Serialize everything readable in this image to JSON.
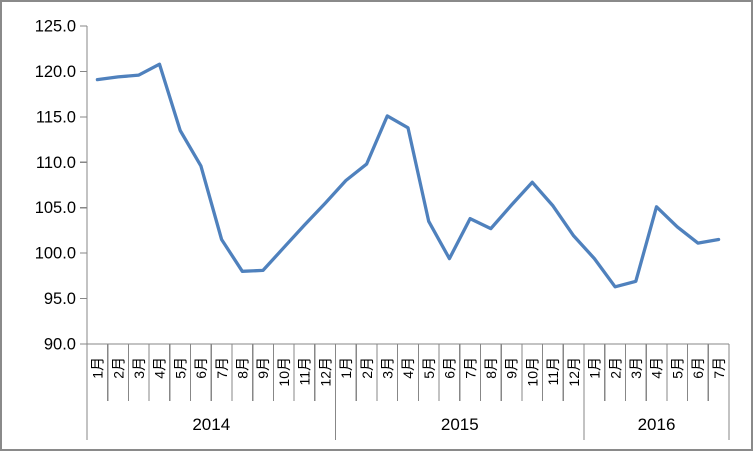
{
  "chart_data": {
    "type": "line",
    "title": "",
    "legend_position": "none",
    "grid": false,
    "line_color": "#4F81BD",
    "axis_color": "#878787",
    "text_color": "#000000",
    "background_color": "#FFFFFF",
    "ylim": [
      90,
      125
    ],
    "y_step": 5,
    "y_tick_labels": [
      "90.0",
      "95.0",
      "100.0",
      "105.0",
      "110.0",
      "115.0",
      "120.0",
      "125.0"
    ],
    "x_axis_levels": [
      "month",
      "year"
    ],
    "groups": [
      {
        "year": "2014",
        "months": [
          "1月",
          "2月",
          "3月",
          "4月",
          "5月",
          "6月",
          "7月",
          "8月",
          "9月",
          "10月",
          "11月",
          "12月"
        ],
        "values": [
          119.1,
          119.4,
          119.6,
          120.8,
          113.5,
          109.6,
          101.5,
          98.0,
          98.1,
          100.6,
          103.1,
          105.5
        ]
      },
      {
        "year": "2015",
        "months": [
          "1月",
          "2月",
          "3月",
          "4月",
          "5月",
          "6月",
          "7月",
          "8月",
          "9月",
          "10月",
          "11月",
          "12月"
        ],
        "values": [
          108.0,
          109.8,
          115.1,
          113.8,
          103.5,
          99.4,
          103.8,
          102.7,
          105.3,
          107.8,
          105.2,
          101.9
        ]
      },
      {
        "year": "2016",
        "months": [
          "1月",
          "2月",
          "3月",
          "4月",
          "5月",
          "6月",
          "7月"
        ],
        "values": [
          99.4,
          96.3,
          96.9,
          105.1,
          102.9,
          101.1,
          101.5
        ]
      }
    ]
  }
}
